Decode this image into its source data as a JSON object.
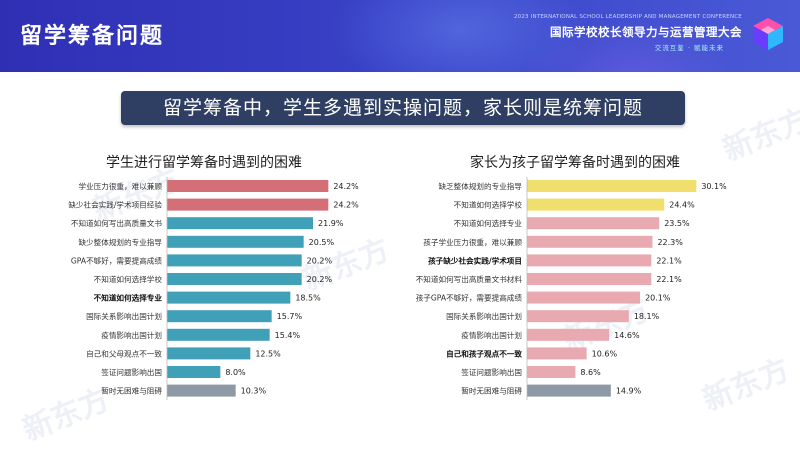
{
  "header": {
    "title": "留学筹备问题",
    "conference_en": "2023 INTERNATIONAL SCHOOL LEADERSHIP AND MANAGEMENT CONFERENCE",
    "conference_cn": "国际学校校长领导力与运营管理大会",
    "slogan": "交流互鉴 · 赋能未来"
  },
  "banner": "留学筹备中，学生多遇到实操问题，家长则是统筹问题",
  "watermark": "新东方",
  "colors": {
    "red": "#d46f78",
    "blue": "#3fa0b8",
    "gray": "#8e99a6",
    "yellow": "#f1df6d",
    "pink": "#e9a9b1"
  },
  "chart_data": [
    {
      "type": "bar",
      "orientation": "horizontal",
      "title": "学生进行留学筹备时遇到的困难",
      "categories": [
        "学业压力很重，难以兼顾",
        "缺少社会实践/学术项目经验",
        "不知道如何写出高质量文书",
        "缺少整体规划的专业指导",
        "GPA不够好，需要提高成绩",
        "不知道如何选择学校",
        "不知道如何选择专业",
        "国际关系影响出国计划",
        "疫情影响出国计划",
        "自己和父母观点不一致",
        "签证问题影响出国",
        "暂时无困难与阻碍"
      ],
      "values": [
        24.2,
        24.2,
        21.9,
        20.5,
        20.2,
        20.2,
        18.5,
        15.7,
        15.4,
        12.5,
        8.0,
        10.3
      ],
      "value_labels": [
        "24.2%",
        "24.2%",
        "21.9%",
        "20.5%",
        "20.2%",
        "20.2%",
        "18.5%",
        "15.7%",
        "15.4%",
        "12.5%",
        "8.0%",
        "10.3%"
      ],
      "bar_colors": [
        "red",
        "red",
        "blue",
        "blue",
        "blue",
        "blue",
        "blue",
        "blue",
        "blue",
        "blue",
        "blue",
        "gray"
      ],
      "bold_rows": [
        6
      ],
      "xlim": [
        0,
        30
      ]
    },
    {
      "type": "bar",
      "orientation": "horizontal",
      "title": "家长为孩子留学筹备时遇到的困难",
      "categories": [
        "缺乏整体规划的专业指导",
        "不知道如何选择学校",
        "不知道如何选择专业",
        "孩子学业压力很重，难以兼顾",
        "孩子缺少社会实践/学术项目",
        "不知道如何写出高质量文书材料",
        "孩子GPA不够好，需要提高成绩",
        "国际关系影响出国计划",
        "疫情影响出国计划",
        "自己和孩子观点不一致",
        "签证问题影响出国",
        "暂时无困难与阻碍"
      ],
      "values": [
        30.1,
        24.4,
        23.5,
        22.3,
        22.1,
        22.1,
        20.1,
        18.1,
        14.6,
        10.6,
        8.6,
        14.9
      ],
      "value_labels": [
        "30.1%",
        "24.4%",
        "23.5%",
        "22.3%",
        "22.1%",
        "22.1%",
        "20.1%",
        "18.1%",
        "14.6%",
        "10.6%",
        "8.6%",
        "14.9%"
      ],
      "bar_colors": [
        "yellow",
        "yellow",
        "pink",
        "pink",
        "pink",
        "pink",
        "pink",
        "pink",
        "pink",
        "pink",
        "pink",
        "gray"
      ],
      "bold_rows": [
        4,
        9
      ],
      "xlim": [
        0,
        32
      ]
    }
  ]
}
